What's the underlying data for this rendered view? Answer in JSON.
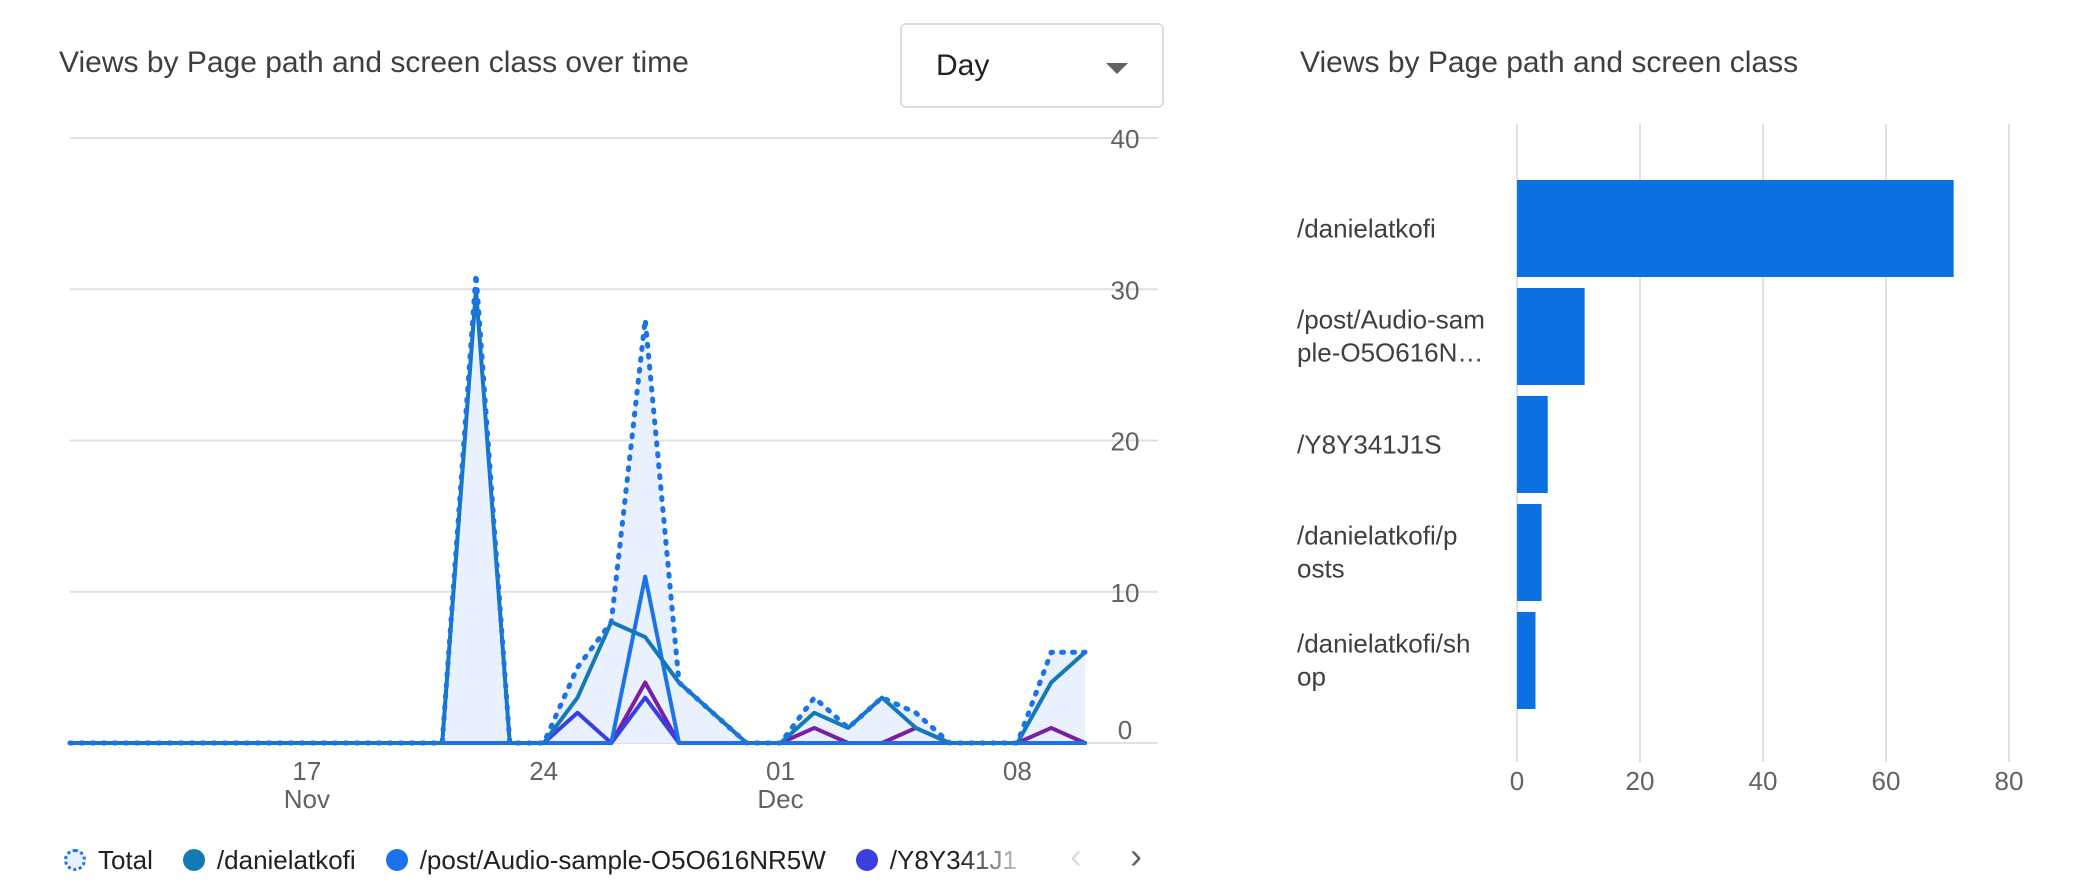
{
  "left_card": {
    "title": "Views by Page path and screen class over time",
    "granularity": {
      "selected": "Day"
    },
    "legend": {
      "items": [
        {
          "label": "Total",
          "color": "#1a73e8",
          "style": "dotted"
        },
        {
          "label": "/danielatkofi",
          "color": "#137ab4"
        },
        {
          "label": "/post/Audio-sample-O5O616NR5W",
          "color": "#1a73e8"
        },
        {
          "label": "/Y8Y341J1",
          "color": "#3b3fe0"
        }
      ],
      "prev": "‹",
      "next": "›"
    }
  },
  "right_card": {
    "title": "Views by Page path and screen class"
  },
  "colors": {
    "total": "#1a73e8",
    "danielatkofi": "#137ab4",
    "post": "#1a73e8",
    "y8y": "#3b3fe0",
    "purple": "#7b1fa2",
    "bar": "#0b71e3",
    "grid": "#e0e0e0",
    "fill": "#e8f0fe"
  },
  "chart_data": [
    {
      "type": "line",
      "title": "Views by Page path and screen class over time",
      "x_ticks": [
        {
          "day": 17,
          "label": "17",
          "sublabel": "Nov"
        },
        {
          "day": 24,
          "label": "24",
          "sublabel": ""
        },
        {
          "day": 31,
          "label": "01",
          "sublabel": "Dec"
        },
        {
          "day": 38,
          "label": "08",
          "sublabel": ""
        }
      ],
      "y_ticks": [
        0,
        10,
        20,
        30,
        40
      ],
      "ylim": [
        0,
        40
      ],
      "x_start_day": 10,
      "y_axis_position": "right",
      "grid": true,
      "series": [
        {
          "name": "Total",
          "dotted": true,
          "points": [
            [
              10,
              0
            ],
            [
              21,
              0
            ],
            [
              22,
              31
            ],
            [
              23,
              0
            ],
            [
              24,
              0
            ],
            [
              25,
              5
            ],
            [
              26,
              8
            ],
            [
              27,
              28
            ],
            [
              28,
              4
            ],
            [
              29,
              2
            ],
            [
              30,
              0
            ],
            [
              31,
              0
            ],
            [
              32,
              3
            ],
            [
              33,
              1
            ],
            [
              34,
              3
            ],
            [
              35,
              2
            ],
            [
              36,
              0
            ],
            [
              38,
              0
            ],
            [
              39,
              6
            ],
            [
              40,
              6
            ]
          ]
        },
        {
          "name": "/danielatkofi",
          "points": [
            [
              10,
              0
            ],
            [
              21,
              0
            ],
            [
              22,
              30
            ],
            [
              23,
              0
            ],
            [
              24,
              0
            ],
            [
              25,
              3
            ],
            [
              26,
              8
            ],
            [
              27,
              7
            ],
            [
              28,
              4
            ],
            [
              29,
              2
            ],
            [
              30,
              0
            ],
            [
              31,
              0
            ],
            [
              32,
              2
            ],
            [
              33,
              1
            ],
            [
              34,
              3
            ],
            [
              35,
              1
            ],
            [
              36,
              0
            ],
            [
              38,
              0
            ],
            [
              39,
              4
            ],
            [
              40,
              6
            ]
          ]
        },
        {
          "name": "/post/Audio-sample-O5O616NR5W",
          "points": [
            [
              10,
              0
            ],
            [
              26,
              0
            ],
            [
              27,
              11
            ],
            [
              28,
              0
            ],
            [
              40,
              0
            ]
          ]
        },
        {
          "name": "/Y8Y341J1",
          "points": [
            [
              10,
              0
            ],
            [
              24,
              0
            ],
            [
              25,
              2
            ],
            [
              26,
              0
            ],
            [
              27,
              3
            ],
            [
              28,
              0
            ],
            [
              40,
              0
            ]
          ]
        },
        {
          "name": "",
          "points": [
            [
              10,
              0
            ],
            [
              26,
              0
            ],
            [
              27,
              4
            ],
            [
              28,
              0
            ],
            [
              31,
              0
            ],
            [
              32,
              1
            ],
            [
              33,
              0
            ],
            [
              34,
              0
            ],
            [
              35,
              1
            ],
            [
              36,
              0
            ],
            [
              38,
              0
            ],
            [
              39,
              1
            ],
            [
              40,
              0
            ]
          ]
        }
      ]
    },
    {
      "type": "bar",
      "orientation": "horizontal",
      "title": "Views by Page path and screen class",
      "categories": [
        {
          "lines": [
            " /danielatkofi"
          ]
        },
        {
          "lines": [
            "/post/Audio-sam",
            "ple-O5O616N…"
          ]
        },
        {
          "lines": [
            "/Y8Y341J1S"
          ]
        },
        {
          "lines": [
            " /danielatkofi/p",
            "osts"
          ]
        },
        {
          "lines": [
            " /danielatkofi/sh",
            "op"
          ]
        }
      ],
      "values": [
        71,
        11,
        5,
        4,
        3
      ],
      "x_ticks": [
        0,
        20,
        40,
        60,
        80
      ],
      "xlim": [
        0,
        80
      ],
      "grid": true
    }
  ]
}
